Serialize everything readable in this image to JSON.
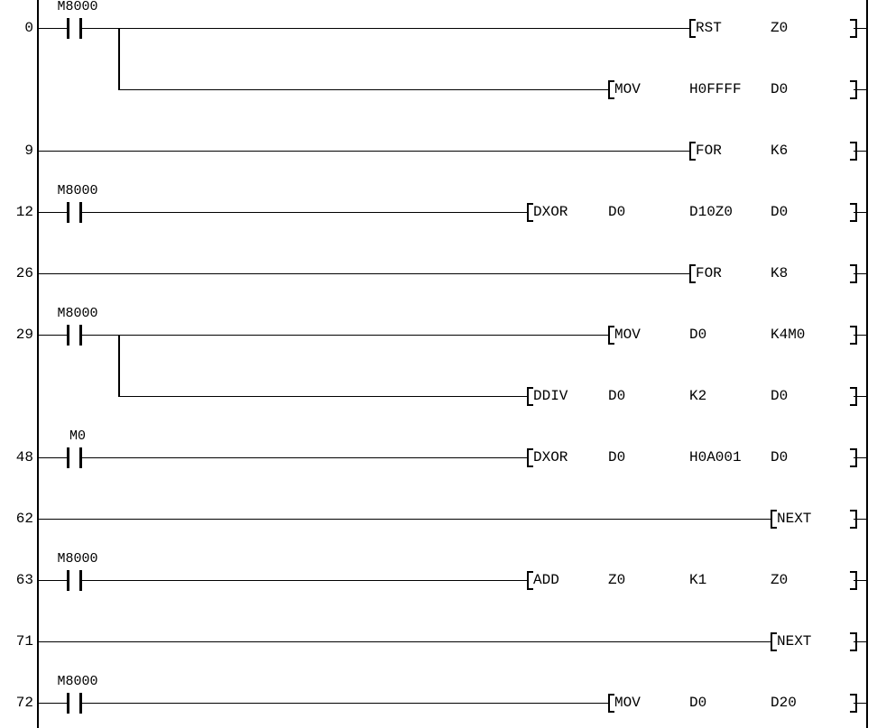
{
  "app": {
    "name": "plc-ladder-diagram-view",
    "colors": {
      "background": "#ffffff",
      "line": "#000000",
      "text": "#000000"
    },
    "icons": {
      "contact": "normally-open-contact-icon",
      "open_bracket": "instruction-open-bracket",
      "close_bracket": "instruction-close-bracket"
    }
  },
  "rows": [
    {
      "step": "0",
      "contact": "M8000",
      "branch_down": true,
      "instruction": [
        "RST",
        "Z0"
      ]
    },
    {
      "branch_in": true,
      "instruction": [
        "MOV",
        "H0FFFF",
        "D0"
      ]
    },
    {
      "step": "9",
      "instruction": [
        "FOR",
        "K6"
      ]
    },
    {
      "step": "12",
      "contact": "M8000",
      "instruction": [
        "DXOR",
        "D0",
        "D10Z0",
        "D0"
      ]
    },
    {
      "step": "26",
      "instruction": [
        "FOR",
        "K8"
      ]
    },
    {
      "step": "29",
      "contact": "M8000",
      "branch_down": true,
      "instruction": [
        "MOV",
        "D0",
        "K4M0"
      ]
    },
    {
      "branch_in": true,
      "instruction": [
        "DDIV",
        "D0",
        "K2",
        "D0"
      ]
    },
    {
      "step": "48",
      "contact": "M0",
      "instruction": [
        "DXOR",
        "D0",
        "H0A001",
        "D0"
      ]
    },
    {
      "step": "62",
      "instruction": [
        "NEXT"
      ]
    },
    {
      "step": "63",
      "contact": "M8000",
      "instruction": [
        "ADD",
        "Z0",
        "K1",
        "Z0"
      ]
    },
    {
      "step": "71",
      "instruction": [
        "NEXT"
      ]
    },
    {
      "step": "72",
      "contact": "M8000",
      "instruction": [
        "MOV",
        "D0",
        "D20"
      ]
    }
  ]
}
